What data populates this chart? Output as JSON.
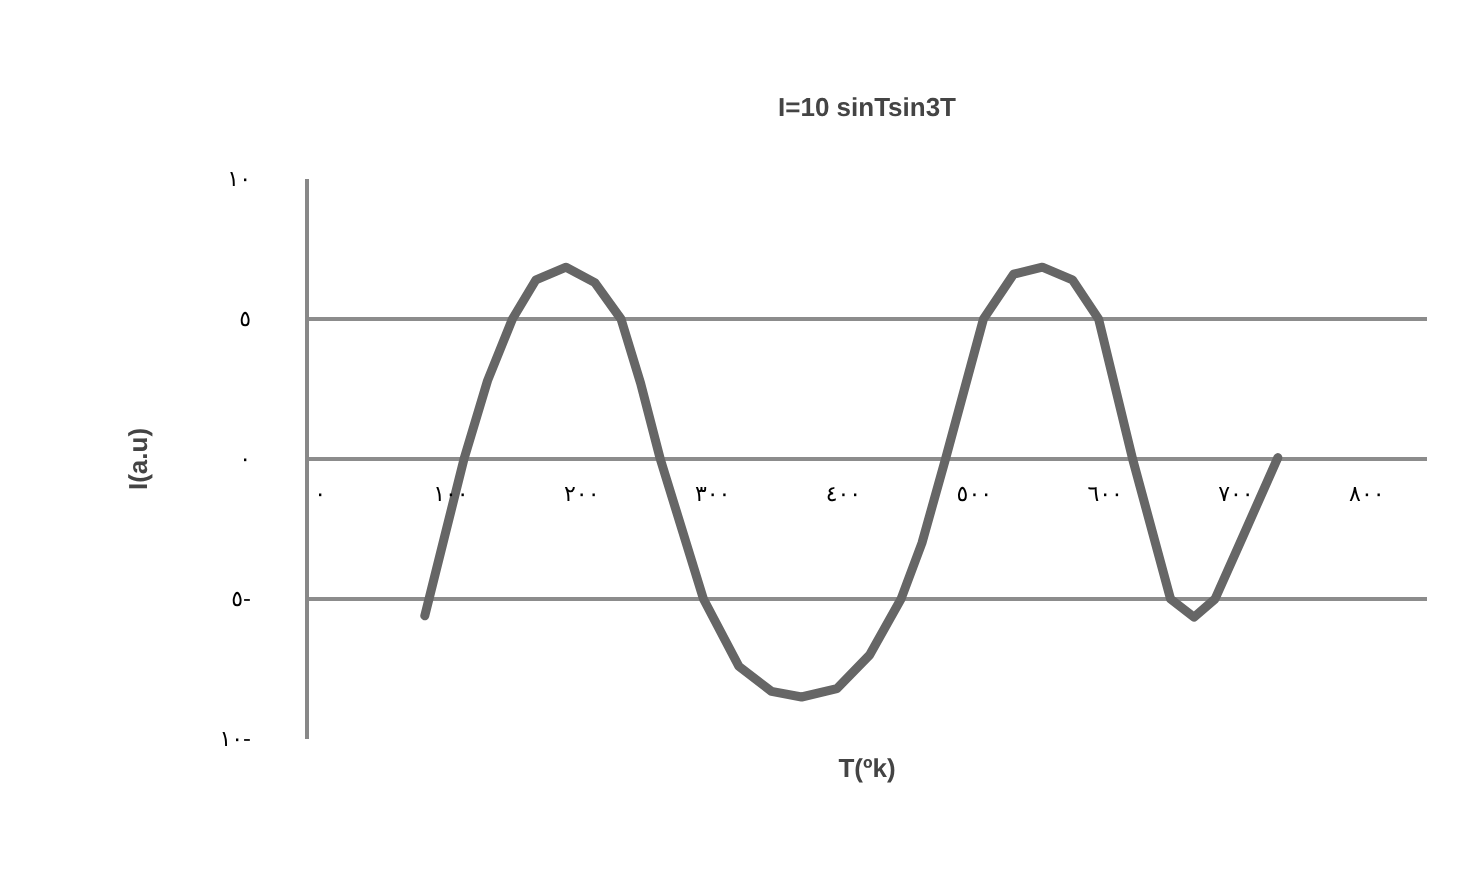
{
  "chart_data": {
    "type": "line",
    "title": "I=10 sinTsin3T",
    "xlabel": "T(ºk)",
    "ylabel": "I(a.u)",
    "x": [
      80,
      95,
      110,
      128,
      147,
      165,
      188,
      210,
      230,
      245,
      260,
      293,
      320,
      345,
      368,
      395,
      420,
      444,
      460,
      478,
      507,
      530,
      552,
      575,
      595,
      621,
      650,
      668,
      684,
      705,
      732
    ],
    "series": [
      {
        "color": "#666666",
        "values": [
          -5.6,
          -2.8,
          0,
          2.8,
          5,
          6.4,
          6.85,
          6.3,
          5,
          2.7,
          0,
          -5,
          -7.4,
          -8.3,
          -8.5,
          -8.2,
          -7,
          -5,
          -3,
          0,
          5,
          6.6,
          6.85,
          6.4,
          5,
          0,
          -5,
          -5.65,
          -5,
          -2.8,
          0.05
        ]
      }
    ],
    "xlim": [
      -10,
      846
    ],
    "ylim": [
      -10,
      10
    ],
    "xticks": [
      {
        "value": 0,
        "label": "٠"
      },
      {
        "value": 100,
        "label": "١٠٠"
      },
      {
        "value": 200,
        "label": "٢٠٠"
      },
      {
        "value": 300,
        "label": "٣٠٠"
      },
      {
        "value": 400,
        "label": "٤٠٠"
      },
      {
        "value": 500,
        "label": "٥٠٠"
      },
      {
        "value": 600,
        "label": "٦٠٠"
      },
      {
        "value": 700,
        "label": "٧٠٠"
      },
      {
        "value": 800,
        "label": "٨٠٠"
      }
    ],
    "yticks": [
      {
        "value": -10,
        "label": "١٠-"
      },
      {
        "value": -5,
        "label": "٥-"
      },
      {
        "value": 0,
        "label": "٠"
      },
      {
        "value": 5,
        "label": "٥"
      },
      {
        "value": 10,
        "label": "١٠"
      }
    ],
    "grid": "y",
    "marker": "none",
    "line_style": "solid"
  }
}
